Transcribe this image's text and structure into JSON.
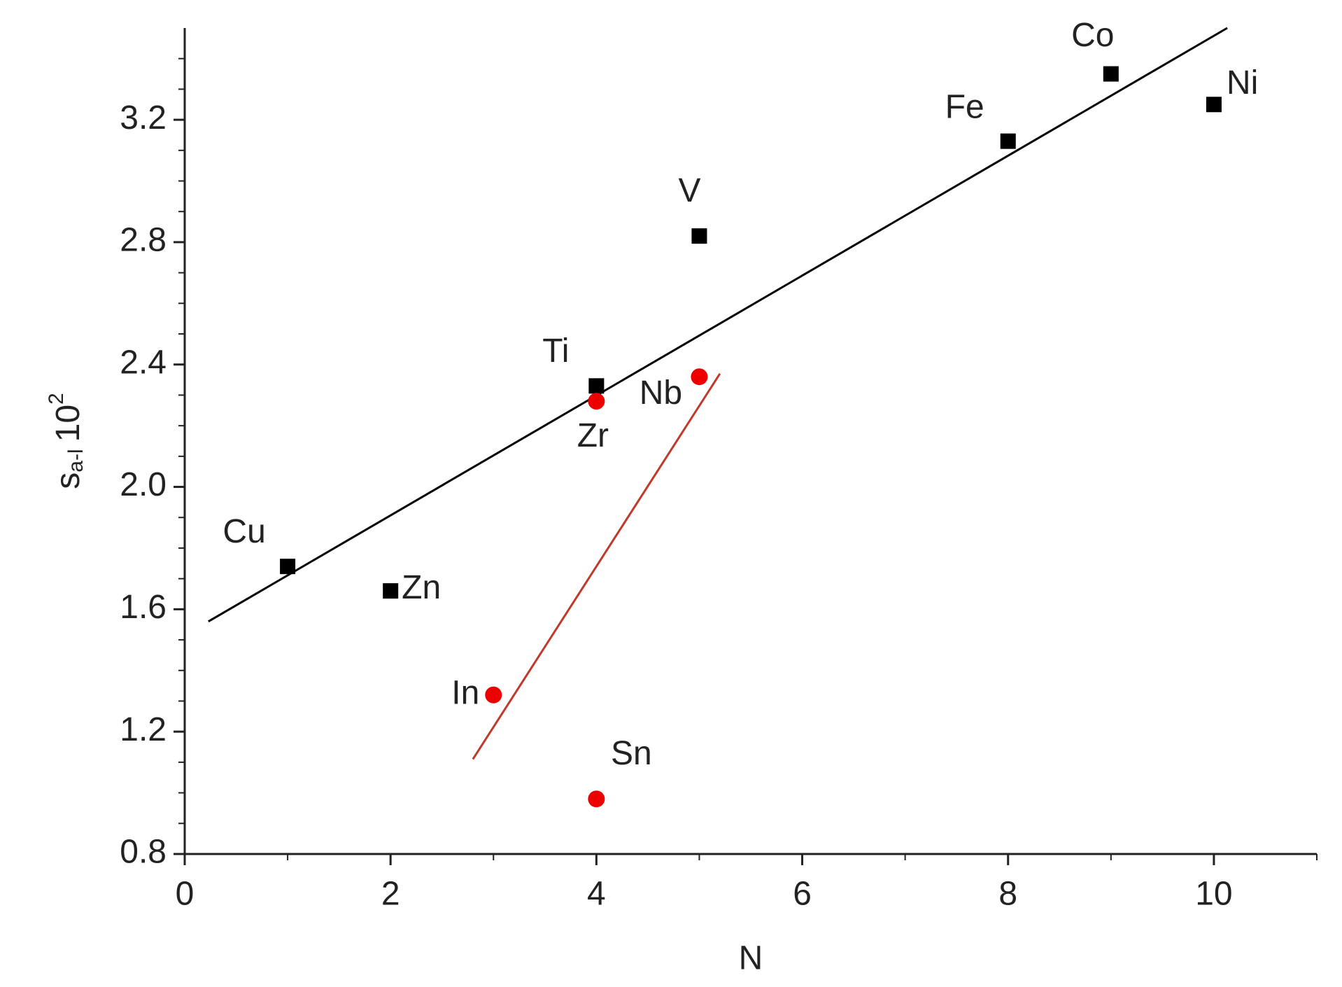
{
  "chart_data": {
    "type": "scatter",
    "xlabel": "N",
    "ylabel": {
      "base": "s",
      "sub": "a-l",
      "factor": "10",
      "sup": "2"
    },
    "xlim": [
      0,
      11
    ],
    "xticks": [
      0,
      2,
      4,
      6,
      8,
      10
    ],
    "xminor_ticks": [
      1,
      3,
      5,
      7,
      9,
      11
    ],
    "ylim": [
      0.8,
      3.5
    ],
    "yticks": [
      0.8,
      1.2,
      1.6,
      {
        "value": 2,
        "label": "2.0"
      },
      2.4,
      2.8,
      3.2
    ],
    "yminor_ticks": [
      0.9,
      1.0,
      1.1,
      1.3,
      1.4,
      1.5,
      1.7,
      1.8,
      1.9,
      2.1,
      2.2,
      2.3,
      2.5,
      2.6,
      2.7,
      2.9,
      3.0,
      3.1,
      3.3,
      3.4
    ],
    "series": [
      {
        "marker": "square",
        "color": "#000000",
        "x": [
          1,
          2,
          4,
          5,
          8,
          9,
          10
        ],
        "values": [
          1.74,
          1.66,
          2.33,
          2.82,
          3.13,
          3.35,
          3.25
        ],
        "labels": [
          "Cu",
          "Zn",
          "Ti",
          "V",
          "Fe",
          "Co",
          "Ni"
        ]
      },
      {
        "marker": "circle",
        "color": "#ee0000",
        "x": [
          4,
          5,
          3,
          4
        ],
        "values": [
          2.28,
          2.36,
          1.32,
          0.98
        ],
        "labels": [
          "Zr",
          "Nb",
          "In",
          "Sn"
        ]
      }
    ],
    "lines": [
      {
        "color": "#000000",
        "x": [
          0.23,
          10.13
        ],
        "values": [
          1.56,
          3.5
        ]
      },
      {
        "color": "#c0392b",
        "x": [
          2.8,
          5.2
        ],
        "values": [
          1.11,
          2.37
        ]
      }
    ]
  }
}
